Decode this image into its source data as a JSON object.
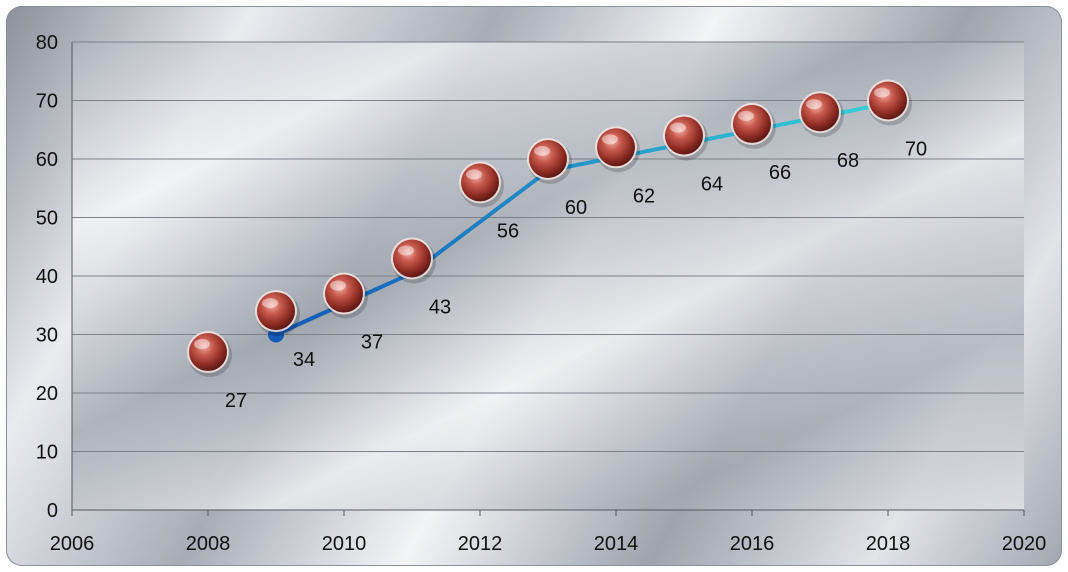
{
  "chart_data": {
    "type": "scatter",
    "title": "",
    "xlabel": "",
    "ylabel": "",
    "xlim": [
      2006,
      2020
    ],
    "ylim": [
      0,
      80
    ],
    "x_ticks": [
      2006,
      2008,
      2010,
      2012,
      2014,
      2016,
      2018,
      2020
    ],
    "y_ticks": [
      0,
      10,
      20,
      30,
      40,
      50,
      60,
      70,
      80
    ],
    "grid": "horizontal",
    "legend": "none",
    "x": [
      2008,
      2009,
      2010,
      2011,
      2012,
      2013,
      2014,
      2015,
      2016,
      2017,
      2018
    ],
    "values": [
      27,
      34,
      37,
      43,
      56,
      60,
      62,
      64,
      66,
      68,
      70
    ],
    "data_labels": [
      "27",
      "34",
      "37",
      "43",
      "56",
      "60",
      "62",
      "64",
      "66",
      "68",
      "70"
    ],
    "trend_arrow": {
      "x": [
        2009,
        2011,
        2013,
        2018
      ],
      "y": [
        30,
        40.5,
        58,
        69.5
      ]
    },
    "colors": {
      "marker": "#b5463c",
      "marker_highlight": "#f2b0a6",
      "arrow_start": "#1458b8",
      "arrow_end": "#36d3d8",
      "gridline": "#7c8088",
      "axis": "#555a62"
    }
  }
}
